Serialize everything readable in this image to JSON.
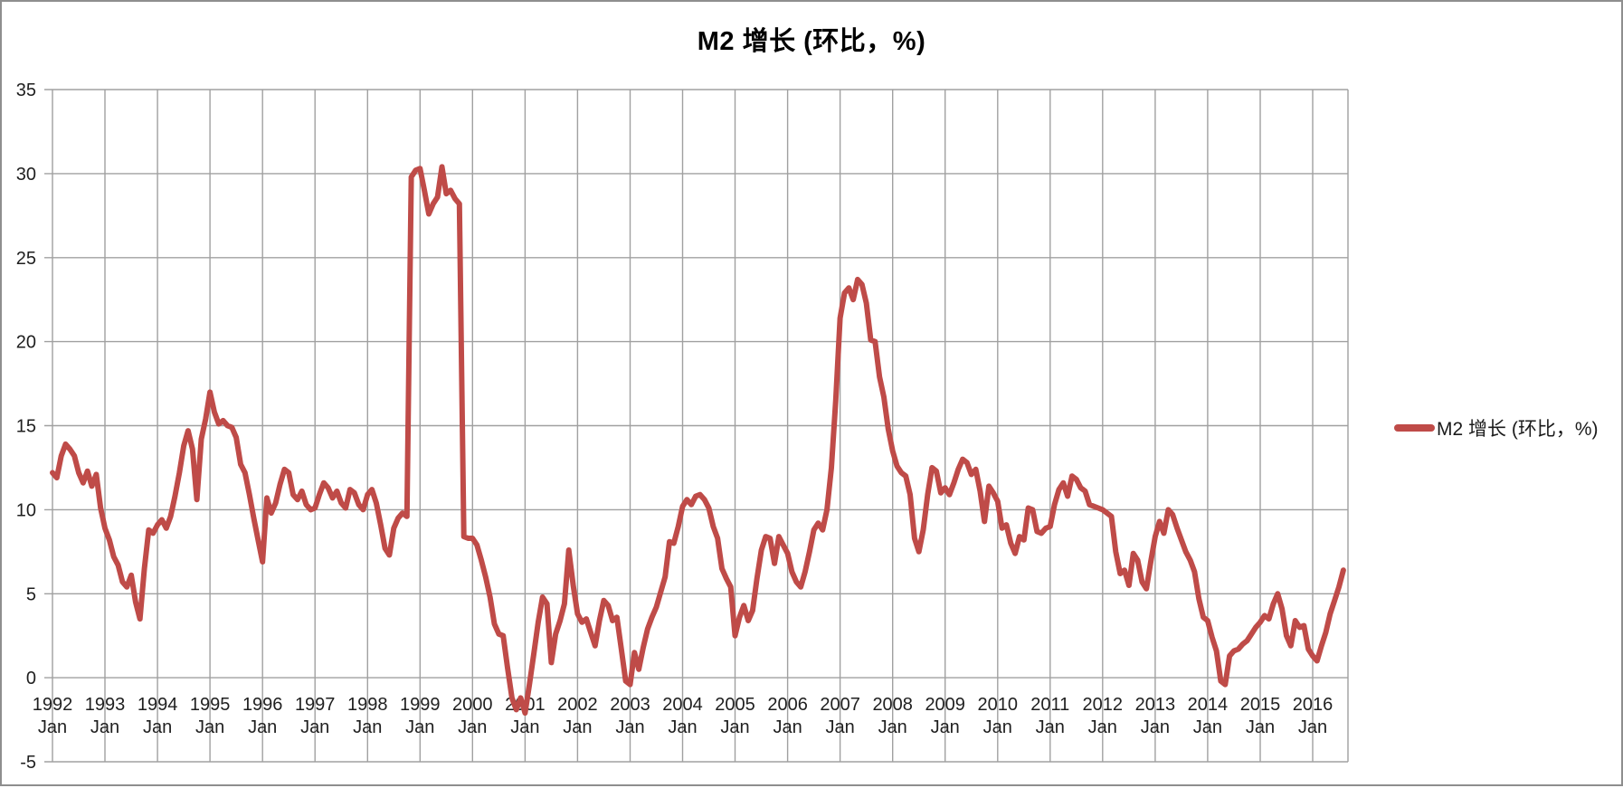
{
  "title": "M2 增长 (环比，%)",
  "legend": {
    "label": "M2 增长 (环比，%)"
  },
  "colors": {
    "line": "#BF4B48",
    "grid": "#A0A0A0",
    "axis_text": "#1F1F1F",
    "title_text": "#000000",
    "frame": "#8E8E8E",
    "background": "#FFFFFF"
  },
  "chart_data": {
    "type": "line",
    "title": "M2 增长 (环比，%)",
    "xlabel": "",
    "ylabel": "",
    "ylim": [
      -5,
      35
    ],
    "y_ticks": [
      35,
      30,
      25,
      20,
      15,
      10,
      5,
      0,
      -5
    ],
    "grid": true,
    "legend_position": "right",
    "x_unit": "month",
    "x_start_label": "1992 Jan",
    "x_end_label": "2016 Aug",
    "x_tick_years": [
      "1992",
      "1993",
      "1994",
      "1995",
      "1996",
      "1997",
      "1998",
      "1999",
      "2000",
      "2001",
      "2002",
      "2003",
      "2004",
      "2005",
      "2006",
      "2007",
      "2008",
      "2009",
      "2010",
      "2011",
      "2012",
      "2013",
      "2014",
      "2015",
      "2016"
    ],
    "x_tick_sub": "Jan",
    "series": [
      {
        "name": "M2 增长 (环比，%)",
        "start": "1992-01",
        "frequency": "monthly",
        "values": [
          12.2,
          11.9,
          13.2,
          13.9,
          13.6,
          13.2,
          12.2,
          11.6,
          12.3,
          11.4,
          12.1,
          10.1,
          8.9,
          8.2,
          7.2,
          6.7,
          5.7,
          5.4,
          6.1,
          4.5,
          3.5,
          6.5,
          8.8,
          8.6,
          9.1,
          9.4,
          8.9,
          9.6,
          10.8,
          12.2,
          13.8,
          14.7,
          13.6,
          10.6,
          14.2,
          15.4,
          17.0,
          15.8,
          15.1,
          15.3,
          15.0,
          14.9,
          14.3,
          12.7,
          12.2,
          10.9,
          9.5,
          8.2,
          6.9,
          10.7,
          9.8,
          10.4,
          11.5,
          12.4,
          12.2,
          10.9,
          10.6,
          11.1,
          10.3,
          10.0,
          10.1,
          10.9,
          11.6,
          11.3,
          10.7,
          11.1,
          10.4,
          10.1,
          11.2,
          11.0,
          10.3,
          10.0,
          10.9,
          11.2,
          10.4,
          9.1,
          7.7,
          7.3,
          8.9,
          9.5,
          9.8,
          9.6,
          29.8,
          30.2,
          30.3,
          29.0,
          27.6,
          28.2,
          28.6,
          30.4,
          28.8,
          29.0,
          28.5,
          28.2,
          8.4,
          8.3,
          8.3,
          7.9,
          7.0,
          6.0,
          4.8,
          3.2,
          2.6,
          2.5,
          0.6,
          -1.2,
          -1.9,
          -1.2,
          -2.1,
          -0.4,
          1.4,
          3.3,
          4.8,
          4.4,
          0.9,
          2.6,
          3.4,
          4.4,
          7.6,
          5.5,
          3.8,
          3.3,
          3.5,
          2.7,
          1.9,
          3.4,
          4.6,
          4.3,
          3.4,
          3.6,
          1.7,
          -0.2,
          -0.4,
          1.5,
          0.5,
          1.8,
          2.9,
          3.6,
          4.2,
          5.1,
          6.0,
          8.1,
          8.0,
          9.0,
          10.2,
          10.6,
          10.3,
          10.8,
          10.9,
          10.6,
          10.1,
          9.0,
          8.3,
          6.5,
          5.9,
          5.4,
          2.5,
          3.6,
          4.3,
          3.4,
          4.0,
          5.9,
          7.6,
          8.4,
          8.3,
          6.8,
          8.4,
          7.9,
          7.4,
          6.3,
          5.7,
          5.4,
          6.3,
          7.5,
          8.8,
          9.2,
          8.8,
          10.0,
          12.5,
          16.5,
          21.4,
          22.9,
          23.2,
          22.5,
          23.7,
          23.4,
          22.3,
          20.1,
          20.0,
          17.9,
          16.7,
          14.8,
          13.5,
          12.6,
          12.2,
          12.0,
          10.9,
          8.3,
          7.5,
          8.8,
          10.9,
          12.5,
          12.3,
          11.0,
          11.3,
          10.9,
          11.6,
          12.4,
          13.0,
          12.8,
          12.1,
          12.4,
          11.1,
          9.3,
          11.4,
          11.0,
          10.5,
          8.9,
          9.1,
          8.0,
          7.4,
          8.4,
          8.2,
          10.1,
          10.0,
          8.7,
          8.6,
          8.9,
          9.0,
          10.3,
          11.2,
          11.6,
          10.8,
          12.0,
          11.8,
          11.3,
          11.1,
          10.3,
          10.2,
          10.1,
          10.0,
          9.8,
          9.6,
          7.5,
          6.2,
          6.4,
          5.5,
          7.4,
          7.0,
          5.7,
          5.3,
          6.9,
          8.4,
          9.3,
          8.6,
          10.0,
          9.7,
          8.9,
          8.2,
          7.5,
          7.0,
          6.3,
          4.7,
          3.6,
          3.4,
          2.4,
          1.6,
          -0.2,
          -0.4,
          1.3,
          1.6,
          1.7,
          2.0,
          2.2,
          2.6,
          3.0,
          3.3,
          3.7,
          3.5,
          4.4,
          5.0,
          4.1,
          2.5,
          1.9,
          3.4,
          3.0,
          3.1,
          1.7,
          1.3,
          1.0,
          1.9,
          2.7,
          3.8,
          4.6,
          5.4,
          6.4
        ]
      }
    ]
  }
}
